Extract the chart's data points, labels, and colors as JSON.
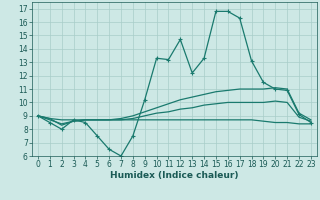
{
  "xlabel": "Humidex (Indice chaleur)",
  "x": [
    0,
    1,
    2,
    3,
    4,
    5,
    6,
    7,
    8,
    9,
    10,
    11,
    12,
    13,
    14,
    15,
    16,
    17,
    18,
    19,
    20,
    21,
    22,
    23
  ],
  "line1": [
    9.0,
    8.5,
    8.0,
    8.7,
    8.5,
    7.5,
    6.5,
    6.0,
    7.5,
    10.2,
    13.3,
    13.2,
    14.7,
    12.2,
    13.3,
    16.8,
    16.8,
    16.3,
    13.1,
    11.5,
    11.0,
    10.9,
    9.1,
    8.5
  ],
  "line2": [
    9.0,
    8.8,
    8.3,
    8.6,
    8.7,
    8.7,
    8.7,
    8.8,
    9.0,
    9.3,
    9.6,
    9.9,
    10.2,
    10.4,
    10.6,
    10.8,
    10.9,
    11.0,
    11.0,
    11.0,
    11.1,
    11.0,
    9.2,
    8.7
  ],
  "line3": [
    9.0,
    8.7,
    8.4,
    8.6,
    8.7,
    8.7,
    8.7,
    8.7,
    8.8,
    9.0,
    9.2,
    9.3,
    9.5,
    9.6,
    9.8,
    9.9,
    10.0,
    10.0,
    10.0,
    10.0,
    10.1,
    10.0,
    8.9,
    8.6
  ],
  "line4": [
    9.0,
    8.8,
    8.7,
    8.7,
    8.7,
    8.7,
    8.7,
    8.7,
    8.7,
    8.7,
    8.7,
    8.7,
    8.7,
    8.7,
    8.7,
    8.7,
    8.7,
    8.7,
    8.7,
    8.6,
    8.5,
    8.5,
    8.4,
    8.4
  ],
  "color": "#1a7a6e",
  "bg_color": "#cde8e5",
  "grid_color": "#a8cdc9",
  "ylim": [
    6,
    17.5
  ],
  "xlim": [
    -0.5,
    23.5
  ],
  "yticks": [
    6,
    7,
    8,
    9,
    10,
    11,
    12,
    13,
    14,
    15,
    16,
    17
  ],
  "xticks": [
    0,
    1,
    2,
    3,
    4,
    5,
    6,
    7,
    8,
    9,
    10,
    11,
    12,
    13,
    14,
    15,
    16,
    17,
    18,
    19,
    20,
    21,
    22,
    23
  ],
  "tick_fontsize": 5.5,
  "xlabel_fontsize": 6.5
}
